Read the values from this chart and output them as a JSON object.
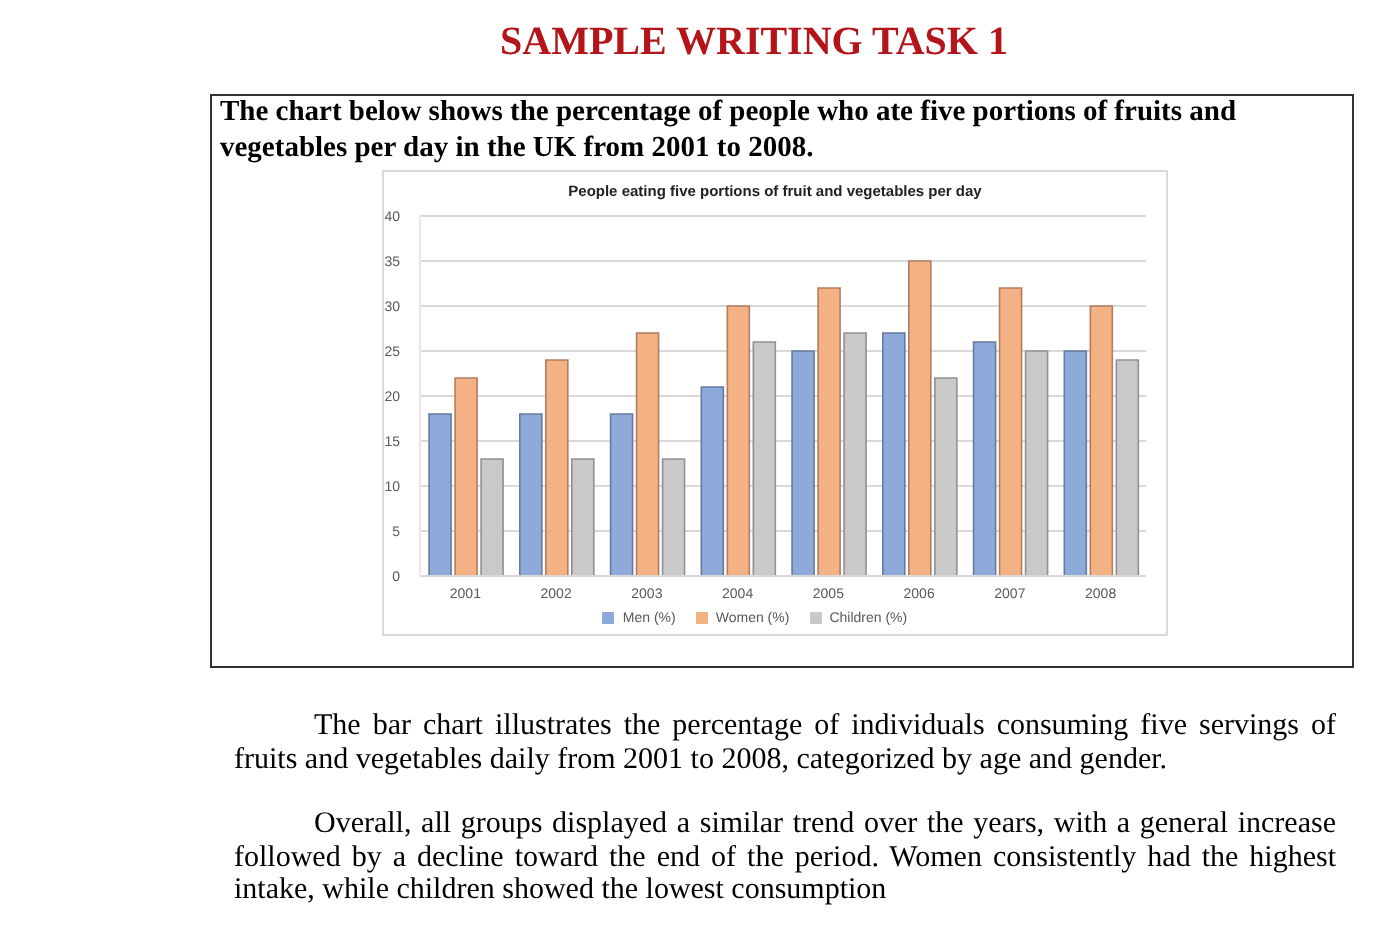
{
  "chart_data": {
    "type": "bar",
    "title": "People eating five portions of fruit and vegetables per day",
    "categories": [
      "2001",
      "2002",
      "2003",
      "2004",
      "2005",
      "2006",
      "2007",
      "2008"
    ],
    "series": [
      {
        "name": "Men (%)",
        "color": "#8eaadb",
        "values": [
          18,
          18,
          18,
          21,
          25,
          27,
          26,
          25
        ]
      },
      {
        "name": "Women (%)",
        "color": "#f4b183",
        "values": [
          22,
          24,
          27,
          30,
          32,
          35,
          32,
          30
        ]
      },
      {
        "name": "Children (%)",
        "color": "#c9c9c9",
        "values": [
          13,
          13,
          13,
          26,
          27,
          22,
          25,
          24
        ]
      }
    ],
    "ylim": [
      0,
      40
    ],
    "yticks": [
      0,
      5,
      10,
      15,
      20,
      25,
      30,
      35,
      40
    ],
    "grid": "y",
    "legend": "bottom",
    "annotations": [
      "SAMPLE WRITING TASK 1",
      "The chart below shows the percentage of people who ate five portions of fruits and vegetables per day in the UK from 2001 to 2008.",
      "The bar chart illustrates the percentage of individuals consuming five servings of fruits and vegetables daily from 2001 to 2008, categorized by age and gender.",
      "Overall, all groups displayed a similar trend over the years, with a general increase followed by a decline toward the end of the period. Women consistently had the highest intake, while children showed the lowest consumption"
    ]
  }
}
